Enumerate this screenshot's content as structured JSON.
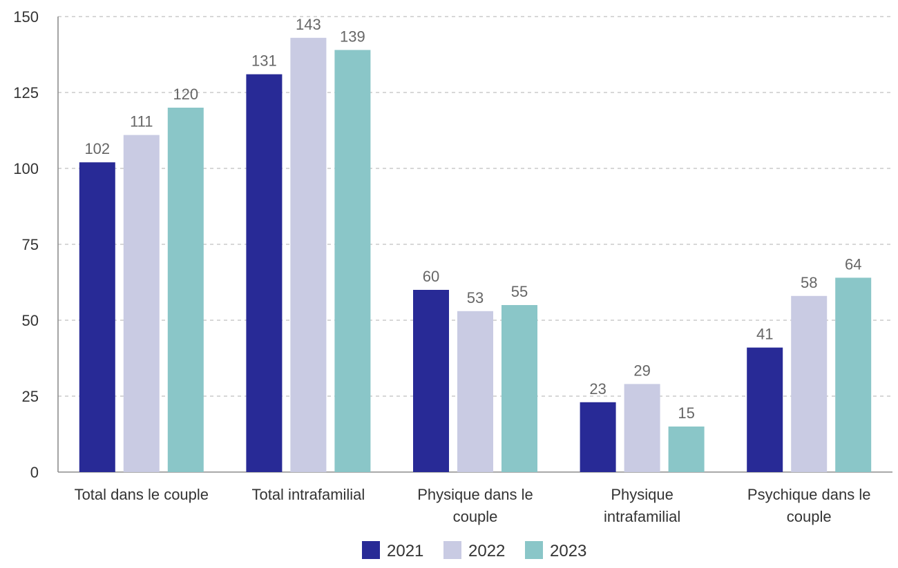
{
  "chart_data": {
    "type": "bar",
    "categories": [
      [
        "Total dans le couple"
      ],
      [
        "Total intrafamilial"
      ],
      [
        "Physique dans le",
        "couple"
      ],
      [
        "Physique",
        "intrafamilial"
      ],
      [
        "Psychique dans le",
        "couple"
      ]
    ],
    "series": [
      {
        "name": "2021",
        "color": "#282a96",
        "values": [
          102,
          131,
          60,
          23,
          41
        ]
      },
      {
        "name": "2022",
        "color": "#c9cbe3",
        "values": [
          111,
          143,
          53,
          29,
          58
        ]
      },
      {
        "name": "2023",
        "color": "#8ac6c8",
        "values": [
          120,
          139,
          55,
          15,
          64
        ]
      }
    ],
    "ylim": [
      0,
      150
    ],
    "yticks": [
      0,
      25,
      50,
      75,
      100,
      125,
      150
    ],
    "grid": true,
    "legend_position": "bottom"
  }
}
